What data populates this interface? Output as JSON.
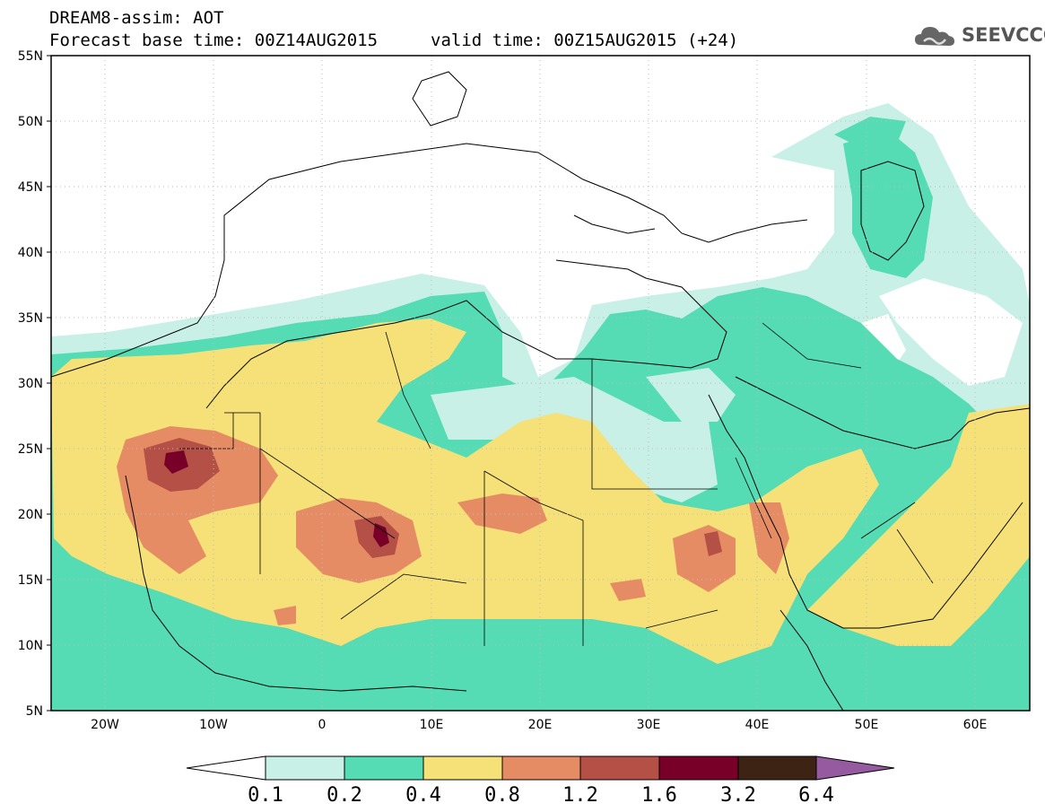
{
  "header": {
    "model_title": "DREAM8-assim: AOT",
    "base_time": "Forecast base time: 00Z14AUG2015",
    "valid_time": "valid time: 00Z15AUG2015 (+24)",
    "logo_text": "SEEVCCC",
    "logo_icon": "cloud-icon"
  },
  "map": {
    "lat_labels": [
      "55N",
      "50N",
      "45N",
      "40N",
      "35N",
      "30N",
      "25N",
      "20N",
      "15N",
      "10N",
      "5N"
    ],
    "lon_labels": [
      "20W",
      "10W",
      "0",
      "10E",
      "20E",
      "30E",
      "40E",
      "50E",
      "60E"
    ],
    "lat_range": [
      5,
      55
    ],
    "lon_range": [
      -25,
      65
    ],
    "grid": "dotted"
  },
  "colorbar": {
    "labels": [
      "0.1",
      "0.2",
      "0.4",
      "0.8",
      "1.2",
      "1.6",
      "3.2",
      "6.4"
    ],
    "colors": {
      "below": "#ffffff",
      "c1": "#c8f0e6",
      "c2": "#55dcb4",
      "c3": "#f5e178",
      "c4": "#e68c64",
      "c5": "#b45046",
      "c6": "#780028",
      "c7": "#3c2314",
      "above": "#965aa0"
    }
  }
}
